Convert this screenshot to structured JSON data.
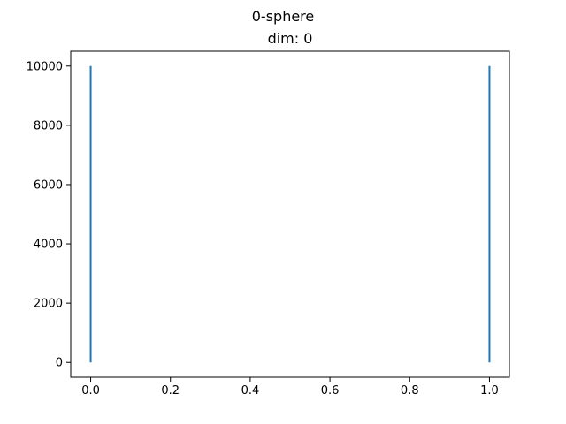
{
  "chart_data": {
    "type": "line",
    "suptitle": "0-sphere",
    "title": "dim: 0",
    "xlabel": "",
    "ylabel": "",
    "xlim": [
      -0.05,
      1.05
    ],
    "ylim": [
      -500,
      10500
    ],
    "xticks": [
      0.0,
      0.2,
      0.4,
      0.6,
      0.8,
      1.0
    ],
    "xtick_labels": [
      "0.0",
      "0.2",
      "0.4",
      "0.6",
      "0.8",
      "1.0"
    ],
    "yticks": [
      0,
      2000,
      4000,
      6000,
      8000,
      10000
    ],
    "ytick_labels": [
      "0",
      "2000",
      "4000",
      "6000",
      "8000",
      "10000"
    ],
    "grid": false,
    "series": [
      {
        "x": [
          0,
          0
        ],
        "y": [
          0,
          10000
        ],
        "color": "#1f77b4"
      },
      {
        "x": [
          1,
          1
        ],
        "y": [
          0,
          10000
        ],
        "color": "#1f77b4"
      }
    ]
  }
}
